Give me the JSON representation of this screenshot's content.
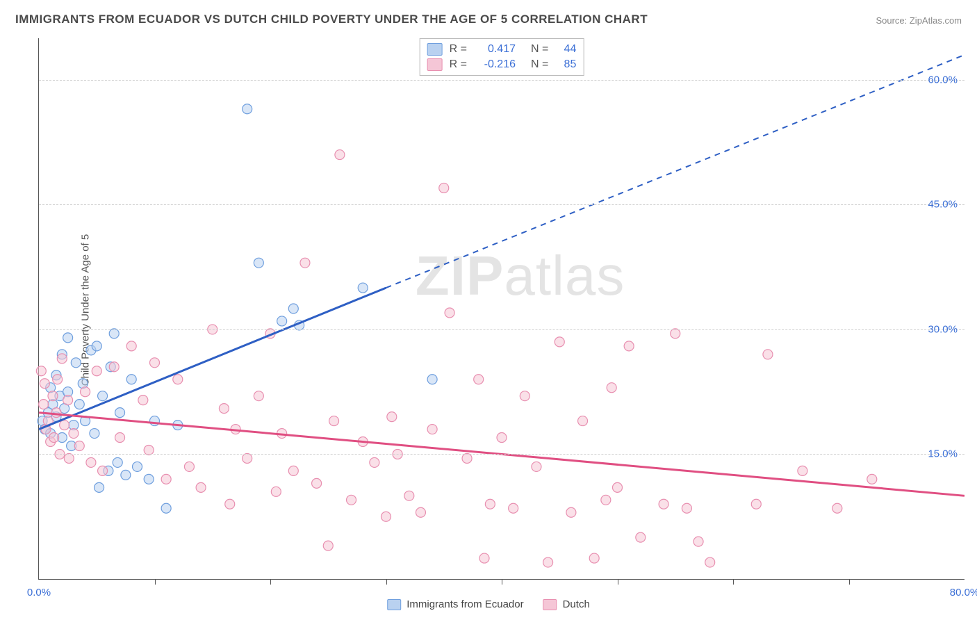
{
  "title": "IMMIGRANTS FROM ECUADOR VS DUTCH CHILD POVERTY UNDER THE AGE OF 5 CORRELATION CHART",
  "source_label": "Source: ZipAtlas.com",
  "ylabel": "Child Poverty Under the Age of 5",
  "watermark": {
    "part1": "ZIP",
    "part2": "atlas"
  },
  "chart": {
    "type": "scatter",
    "x_domain": [
      0,
      80
    ],
    "y_domain": [
      0,
      65
    ],
    "x_origin_label": "0.0%",
    "x_max_label": "80.0%",
    "x_label_color": "#3b6fd6",
    "x_tick_positions": [
      10,
      20,
      30,
      40,
      50,
      60,
      70
    ],
    "y_ticks": [
      {
        "value": 15,
        "label": "15.0%"
      },
      {
        "value": 30,
        "label": "30.0%"
      },
      {
        "value": 45,
        "label": "45.0%"
      },
      {
        "value": 60,
        "label": "60.0%"
      }
    ],
    "y_label_color": "#3b6fd6",
    "grid_color": "#d0d0d0",
    "background_color": "#ffffff",
    "series": [
      {
        "name": "Immigrants from Ecuador",
        "color_fill": "#b9d1f0",
        "color_stroke": "#6f9fde",
        "line_color": "#2e5fc4",
        "marker_radius": 7,
        "fill_opacity": 0.55,
        "R": "0.417",
        "N": "44",
        "trend": {
          "x1": 0,
          "y1": 18,
          "x2": 30,
          "y2": 35,
          "x_dash_to": 80,
          "y_dash_to": 63
        },
        "points": [
          [
            0.3,
            19
          ],
          [
            0.5,
            18
          ],
          [
            0.8,
            20
          ],
          [
            1,
            17.5
          ],
          [
            1,
            23
          ],
          [
            1.2,
            21
          ],
          [
            1.5,
            24.5
          ],
          [
            1.5,
            19.5
          ],
          [
            1.8,
            22
          ],
          [
            2,
            17
          ],
          [
            2,
            27
          ],
          [
            2.2,
            20.5
          ],
          [
            2.5,
            29
          ],
          [
            2.5,
            22.5
          ],
          [
            2.8,
            16
          ],
          [
            3,
            18.5
          ],
          [
            3.2,
            26
          ],
          [
            3.5,
            21
          ],
          [
            3.8,
            23.5
          ],
          [
            4,
            19
          ],
          [
            4.5,
            27.5
          ],
          [
            4.8,
            17.5
          ],
          [
            5,
            28
          ],
          [
            5.2,
            11
          ],
          [
            5.5,
            22
          ],
          [
            6,
            13
          ],
          [
            6.2,
            25.5
          ],
          [
            6.5,
            29.5
          ],
          [
            6.8,
            14
          ],
          [
            7,
            20
          ],
          [
            7.5,
            12.5
          ],
          [
            8,
            24
          ],
          [
            8.5,
            13.5
          ],
          [
            9.5,
            12
          ],
          [
            10,
            19
          ],
          [
            11,
            8.5
          ],
          [
            12,
            18.5
          ],
          [
            18,
            56.5
          ],
          [
            19,
            38
          ],
          [
            21,
            31
          ],
          [
            22,
            32.5
          ],
          [
            22.5,
            30.5
          ],
          [
            28,
            35
          ],
          [
            34,
            24
          ]
        ]
      },
      {
        "name": "Dutch",
        "color_fill": "#f5c6d6",
        "color_stroke": "#e88fb0",
        "line_color": "#e04f82",
        "marker_radius": 7,
        "fill_opacity": 0.55,
        "R": "-0.216",
        "N": "85",
        "trend": {
          "x1": 0,
          "y1": 20,
          "x2": 80,
          "y2": 10
        },
        "points": [
          [
            0.2,
            25
          ],
          [
            0.4,
            21
          ],
          [
            0.5,
            23.5
          ],
          [
            0.6,
            18
          ],
          [
            0.8,
            19
          ],
          [
            1,
            16.5
          ],
          [
            1.2,
            22
          ],
          [
            1.3,
            17
          ],
          [
            1.5,
            20
          ],
          [
            1.6,
            24
          ],
          [
            1.8,
            15
          ],
          [
            2,
            26.5
          ],
          [
            2.2,
            18.5
          ],
          [
            2.5,
            21.5
          ],
          [
            2.6,
            14.5
          ],
          [
            3,
            17.5
          ],
          [
            3.5,
            16
          ],
          [
            4,
            22.5
          ],
          [
            4.5,
            14
          ],
          [
            5,
            25
          ],
          [
            5.5,
            13
          ],
          [
            6.5,
            25.5
          ],
          [
            7,
            17
          ],
          [
            8,
            28
          ],
          [
            9,
            21.5
          ],
          [
            9.5,
            15.5
          ],
          [
            10,
            26
          ],
          [
            11,
            12
          ],
          [
            12,
            24
          ],
          [
            13,
            13.5
          ],
          [
            14,
            11
          ],
          [
            15,
            30
          ],
          [
            16,
            20.5
          ],
          [
            16.5,
            9
          ],
          [
            17,
            18
          ],
          [
            18,
            14.5
          ],
          [
            19,
            22
          ],
          [
            20,
            29.5
          ],
          [
            20.5,
            10.5
          ],
          [
            21,
            17.5
          ],
          [
            22,
            13
          ],
          [
            23,
            38
          ],
          [
            24,
            11.5
          ],
          [
            25,
            4
          ],
          [
            25.5,
            19
          ],
          [
            26,
            51
          ],
          [
            27,
            9.5
          ],
          [
            28,
            16.5
          ],
          [
            29,
            14
          ],
          [
            30,
            7.5
          ],
          [
            30.5,
            19.5
          ],
          [
            31,
            15
          ],
          [
            32,
            10
          ],
          [
            33,
            8
          ],
          [
            34,
            18
          ],
          [
            35,
            47
          ],
          [
            35.5,
            32
          ],
          [
            37,
            14.5
          ],
          [
            38,
            24
          ],
          [
            38.5,
            2.5
          ],
          [
            39,
            9
          ],
          [
            40,
            17
          ],
          [
            41,
            8.5
          ],
          [
            42,
            22
          ],
          [
            43,
            13.5
          ],
          [
            44,
            2
          ],
          [
            45,
            28.5
          ],
          [
            46,
            8
          ],
          [
            47,
            19
          ],
          [
            48,
            2.5
          ],
          [
            49,
            9.5
          ],
          [
            49.5,
            23
          ],
          [
            50,
            11
          ],
          [
            51,
            28
          ],
          [
            52,
            5
          ],
          [
            54,
            9
          ],
          [
            55,
            29.5
          ],
          [
            56,
            8.5
          ],
          [
            57,
            4.5
          ],
          [
            58,
            2
          ],
          [
            62,
            9
          ],
          [
            63,
            27
          ],
          [
            66,
            13
          ],
          [
            69,
            8.5
          ],
          [
            72,
            12
          ]
        ]
      }
    ],
    "bottom_legend_items": [
      {
        "label": "Immigrants from Ecuador",
        "fill": "#b9d1f0",
        "stroke": "#6f9fde"
      },
      {
        "label": "Dutch",
        "fill": "#f5c6d6",
        "stroke": "#e88fb0"
      }
    ]
  }
}
